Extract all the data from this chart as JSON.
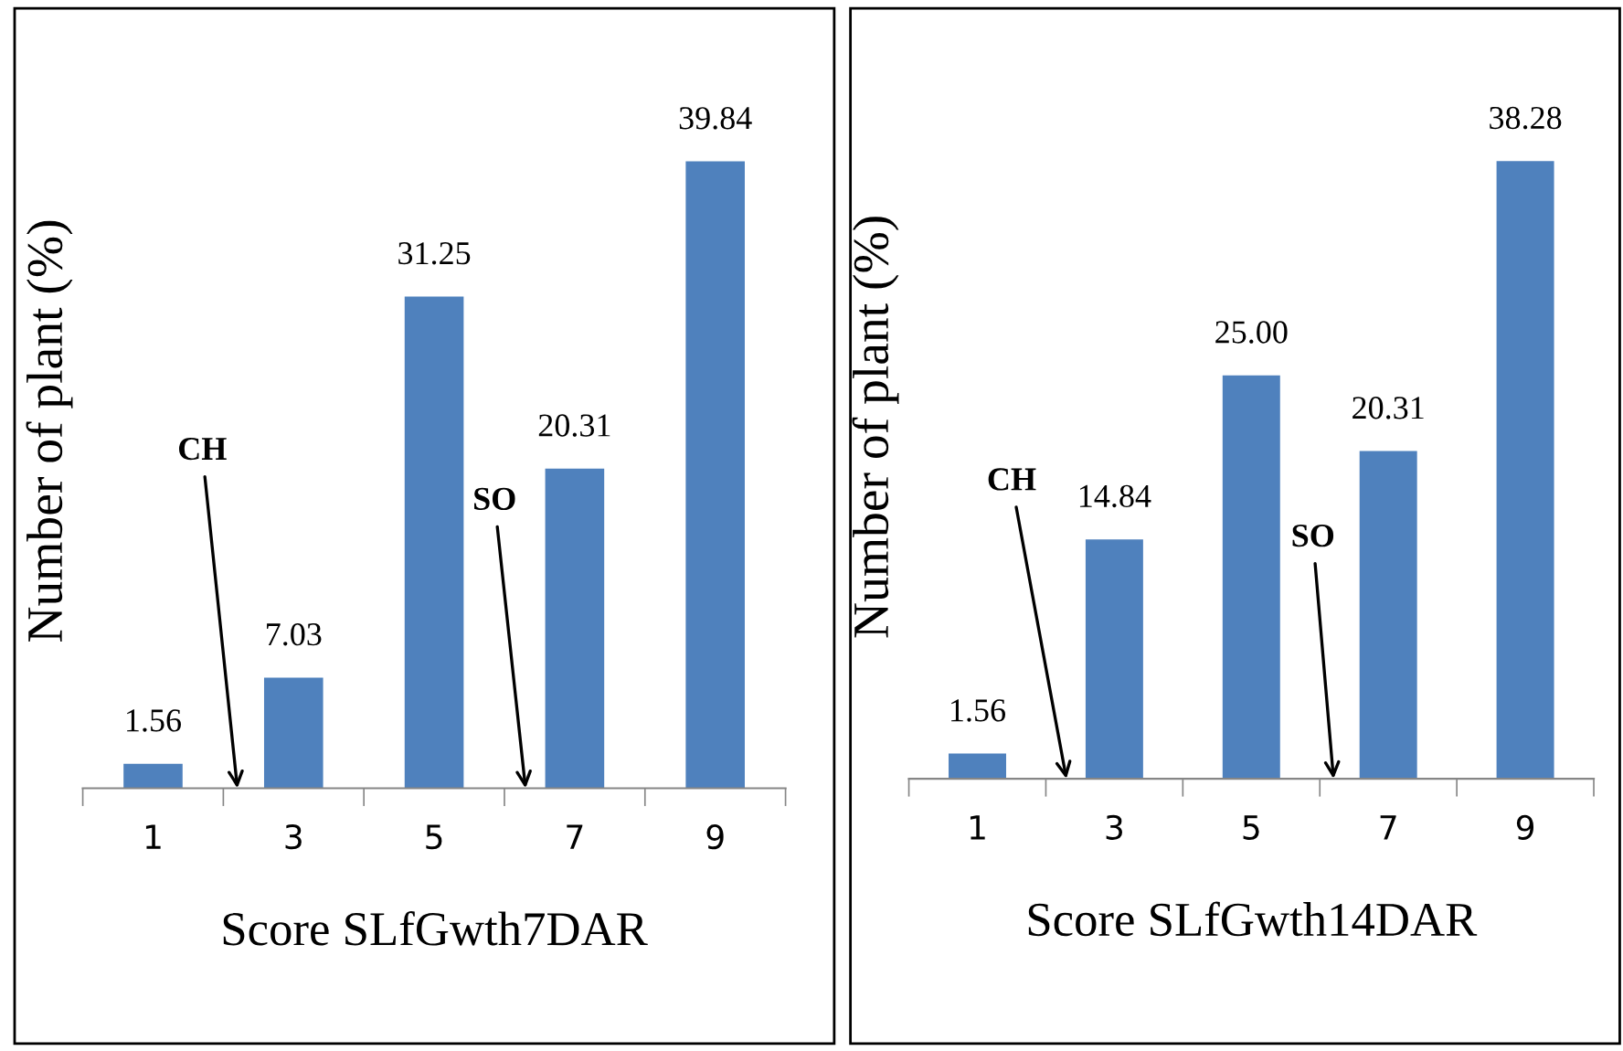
{
  "chart_data": [
    {
      "type": "bar",
      "categories": [
        "1",
        "3",
        "5",
        "7",
        "9"
      ],
      "values": [
        1.56,
        7.03,
        31.25,
        20.31,
        39.84
      ],
      "value_labels": [
        "1.56",
        "7.03",
        "31.25",
        "20.31",
        "39.84"
      ],
      "color": "#4f81bd",
      "xlabel": "Score SLfGwth7DAR",
      "ylabel": "Number of plant (%)",
      "annotations": [
        "CH",
        "SO"
      ],
      "relative": false
    },
    {
      "type": "bar",
      "categories": [
        "1",
        "3",
        "5",
        "7",
        "9"
      ],
      "values": [
        1.56,
        14.84,
        25.0,
        20.31,
        38.28
      ],
      "value_labels": [
        "1.56",
        "14.84",
        "25.00",
        "20.31",
        "38.28"
      ],
      "color": "#4f81bd",
      "xlabel": "Score SLfGwth14DAR",
      "ylabel": "Number of plant (%)",
      "annotations": [
        "CH",
        "SO"
      ],
      "relative": false
    }
  ]
}
